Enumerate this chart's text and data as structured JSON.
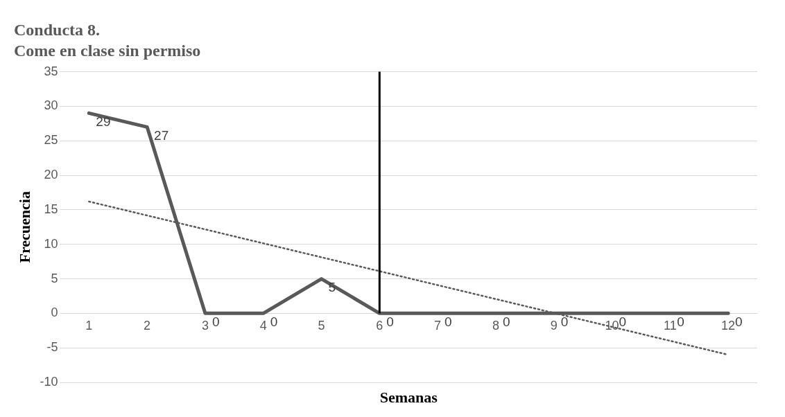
{
  "chart_data": {
    "type": "line",
    "title": "Conducta 8.",
    "subtitle": "Come en clase sin permiso",
    "xlabel": "Semanas",
    "ylabel": "Frecuencia",
    "x": [
      1,
      2,
      3,
      4,
      5,
      6,
      7,
      8,
      9,
      10,
      11,
      12
    ],
    "series": [
      {
        "color": "#595959",
        "values": [
          29,
          27,
          0,
          0,
          5,
          0,
          0,
          0,
          0,
          0,
          0,
          0
        ],
        "value_labels": [
          "29",
          "27",
          "0",
          "0",
          "5",
          "0",
          "0",
          "0",
          "0",
          "0",
          "0",
          "0"
        ]
      },
      {
        "type": "line",
        "x": [
          1,
          12
        ],
        "values": [
          16.2,
          -6.0
        ],
        "color": "#595959",
        "line_style": "dotted"
      }
    ],
    "xlim": [
      0.5,
      12.5
    ],
    "xticks": [
      1,
      2,
      3,
      4,
      5,
      6,
      7,
      8,
      9,
      10,
      11,
      12
    ],
    "ylim": [
      -10,
      35
    ],
    "yticks": [
      -10,
      -5,
      0,
      5,
      10,
      15,
      20,
      25,
      30,
      35
    ],
    "ref_lines": [
      {
        "axis": "x",
        "value": 6,
        "color": "#000000"
      }
    ],
    "grid": "y",
    "legend": false,
    "marker": "none",
    "line_style": "solid"
  }
}
